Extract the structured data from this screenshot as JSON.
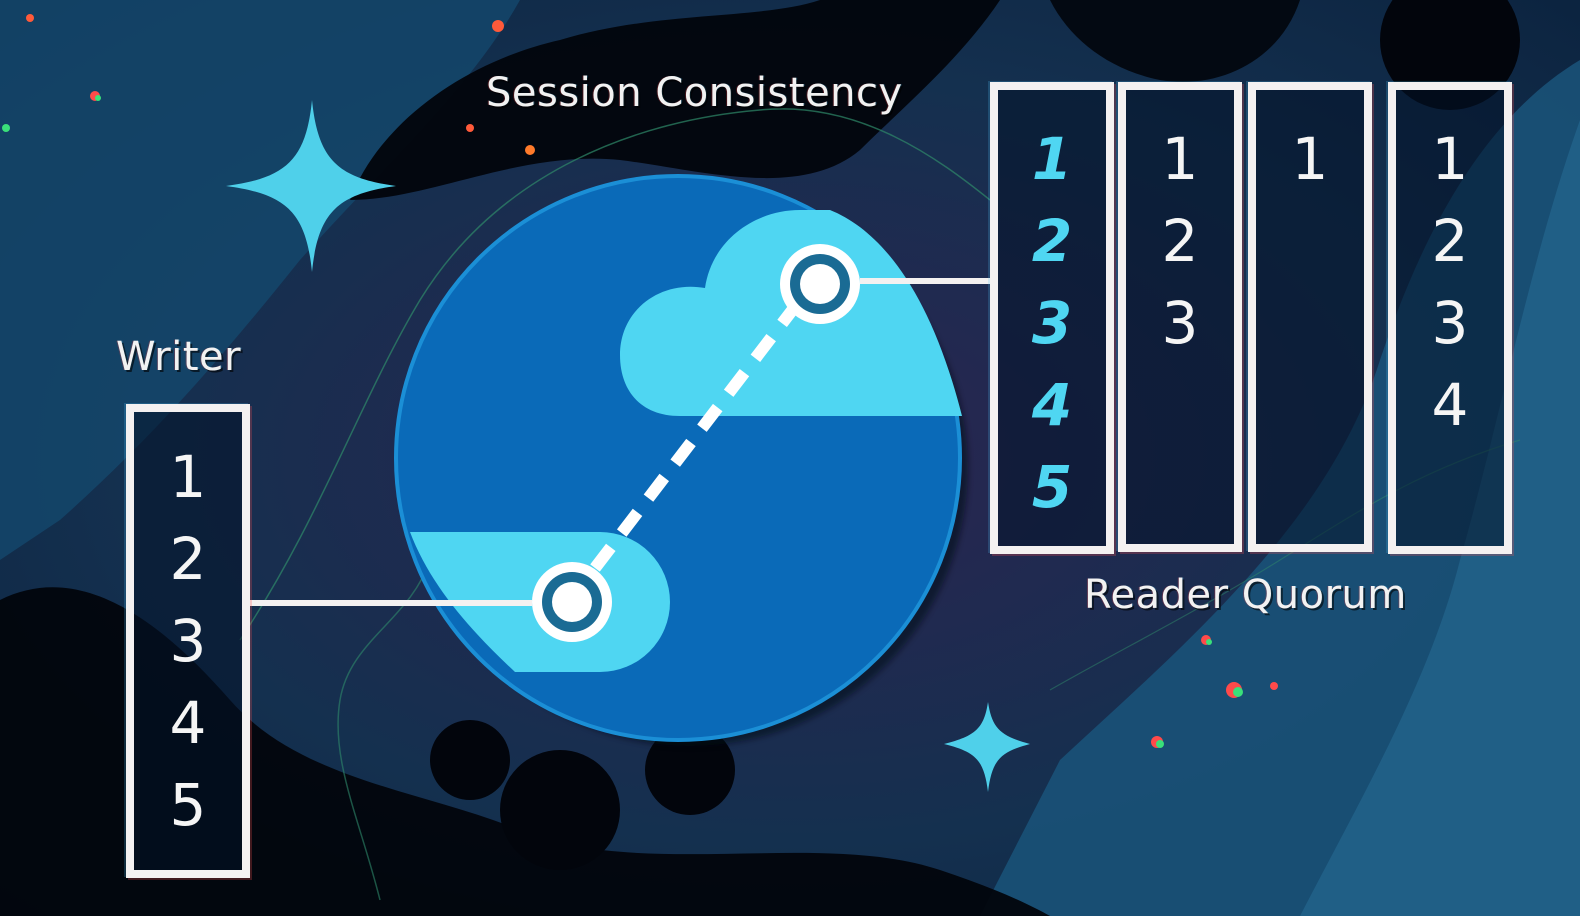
{
  "diagram": {
    "title": "Session Consistency",
    "writer": {
      "label": "Writer",
      "entries": [
        "1",
        "2",
        "3",
        "4",
        "5"
      ]
    },
    "reader_quorum": {
      "label": "Reader Quorum",
      "replicas": [
        {
          "entries": [
            "1",
            "2",
            "3",
            "4",
            "5"
          ],
          "highlighted": true
        },
        {
          "entries": [
            "1",
            "2",
            "3"
          ],
          "highlighted": false
        },
        {
          "entries": [
            "1"
          ],
          "highlighted": false
        },
        {
          "entries": [
            "1",
            "2",
            "3",
            "4"
          ],
          "highlighted": false
        }
      ]
    }
  },
  "colors": {
    "background": "#0b1f33",
    "globe": "#0a6ab8",
    "globe_edge": "#1b8fd6",
    "cloud": "#4fd6f2",
    "sparkle": "#4fd0ea",
    "box_border": "#f4f1f1",
    "highlight_text": "#4fd6f2"
  },
  "icons": {
    "globe": "globe-icon",
    "cloud": "cloud-icon",
    "sparkle": "sparkle-icon",
    "node": "node-icon"
  }
}
